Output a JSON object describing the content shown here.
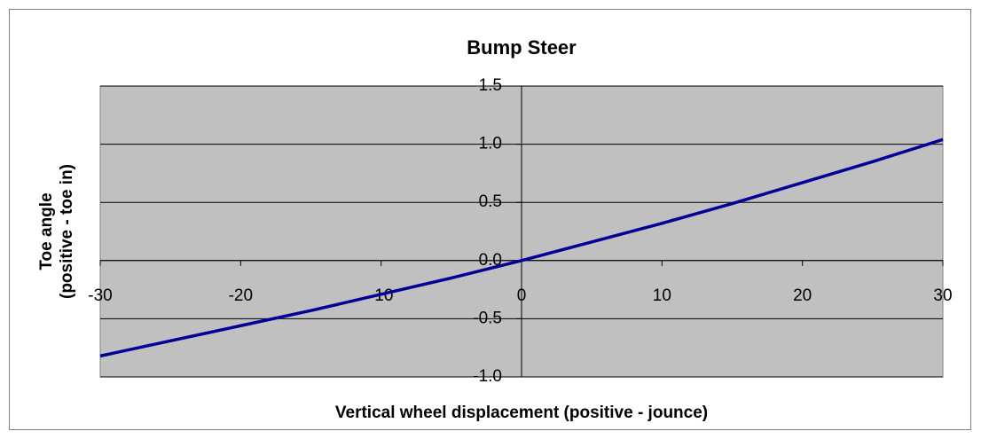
{
  "chart_data": {
    "type": "line",
    "title": "Bump Steer",
    "xlabel": "Vertical wheel displacement (positive - jounce)",
    "ylabel": [
      "Toe angle",
      "(positive - toe in)"
    ],
    "x": [
      -30,
      -25,
      -20,
      -15,
      -10,
      -5,
      0,
      5,
      10,
      15,
      20,
      25,
      30
    ],
    "series": [
      {
        "name": "Toe angle",
        "color": "#000099",
        "values": [
          -0.82,
          -0.69,
          -0.56,
          -0.43,
          -0.29,
          -0.15,
          0,
          0.16,
          0.32,
          0.49,
          0.67,
          0.85,
          1.04
        ]
      }
    ],
    "xlim": [
      -30,
      30
    ],
    "xticks": [
      -30,
      -20,
      -10,
      0,
      10,
      20,
      30
    ],
    "ylim": [
      -1,
      1.5
    ],
    "yticks": [
      {
        "value": -1,
        "label": "-1.0"
      },
      -0.5,
      {
        "value": 0,
        "label": "0.0"
      },
      0.5,
      {
        "value": 1,
        "label": "1.0"
      },
      1.5
    ],
    "grid": true
  }
}
